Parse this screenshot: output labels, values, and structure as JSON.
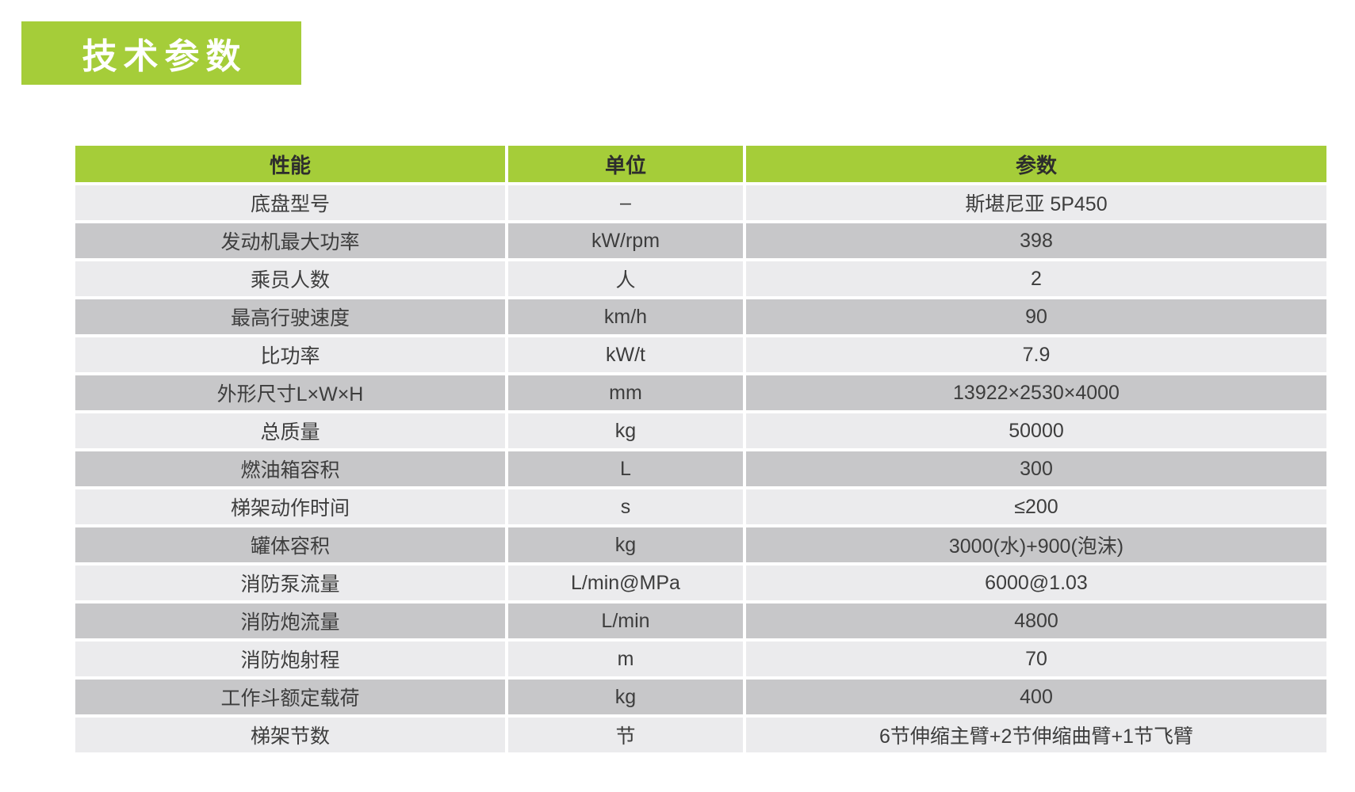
{
  "colors": {
    "accent_green": "#a5cd39",
    "row_light": "#ebebed",
    "row_dark": "#c7c7c9",
    "header_text": "#2d2d2d",
    "cell_text": "#3d3d3d",
    "banner_text": "#ffffff",
    "page_background": "#ffffff"
  },
  "title_banner": {
    "text": "技术参数"
  },
  "table": {
    "headers": {
      "performance": "性能",
      "unit": "单位",
      "parameter": "参数"
    },
    "rows": [
      {
        "name": "底盘型号",
        "unit": "–",
        "value": "斯堪尼亚 5P450"
      },
      {
        "name": "发动机最大功率",
        "unit": "kW/rpm",
        "value": "398"
      },
      {
        "name": "乘员人数",
        "unit": "人",
        "value": "2"
      },
      {
        "name": "最高行驶速度",
        "unit": "km/h",
        "value": "90"
      },
      {
        "name": "比功率",
        "unit": "kW/t",
        "value": "7.9"
      },
      {
        "name": "外形尺寸L×W×H",
        "unit": "mm",
        "value": "13922×2530×4000"
      },
      {
        "name": "总质量",
        "unit": "kg",
        "value": "50000"
      },
      {
        "name": "燃油箱容积",
        "unit": "L",
        "value": "300"
      },
      {
        "name": "梯架动作时间",
        "unit": "s",
        "value": "≤200"
      },
      {
        "name": "罐体容积",
        "unit": "kg",
        "value": "3000(水)+900(泡沫)"
      },
      {
        "name": "消防泵流量",
        "unit": "L/min@MPa",
        "value": "6000@1.03"
      },
      {
        "name": "消防炮流量",
        "unit": "L/min",
        "value": "4800"
      },
      {
        "name": "消防炮射程",
        "unit": "m",
        "value": "70"
      },
      {
        "name": "工作斗额定载荷",
        "unit": "kg",
        "value": "400"
      },
      {
        "name": "梯架节数",
        "unit": "节",
        "value": "6节伸缩主臂+2节伸缩曲臂+1节飞臂"
      }
    ]
  }
}
